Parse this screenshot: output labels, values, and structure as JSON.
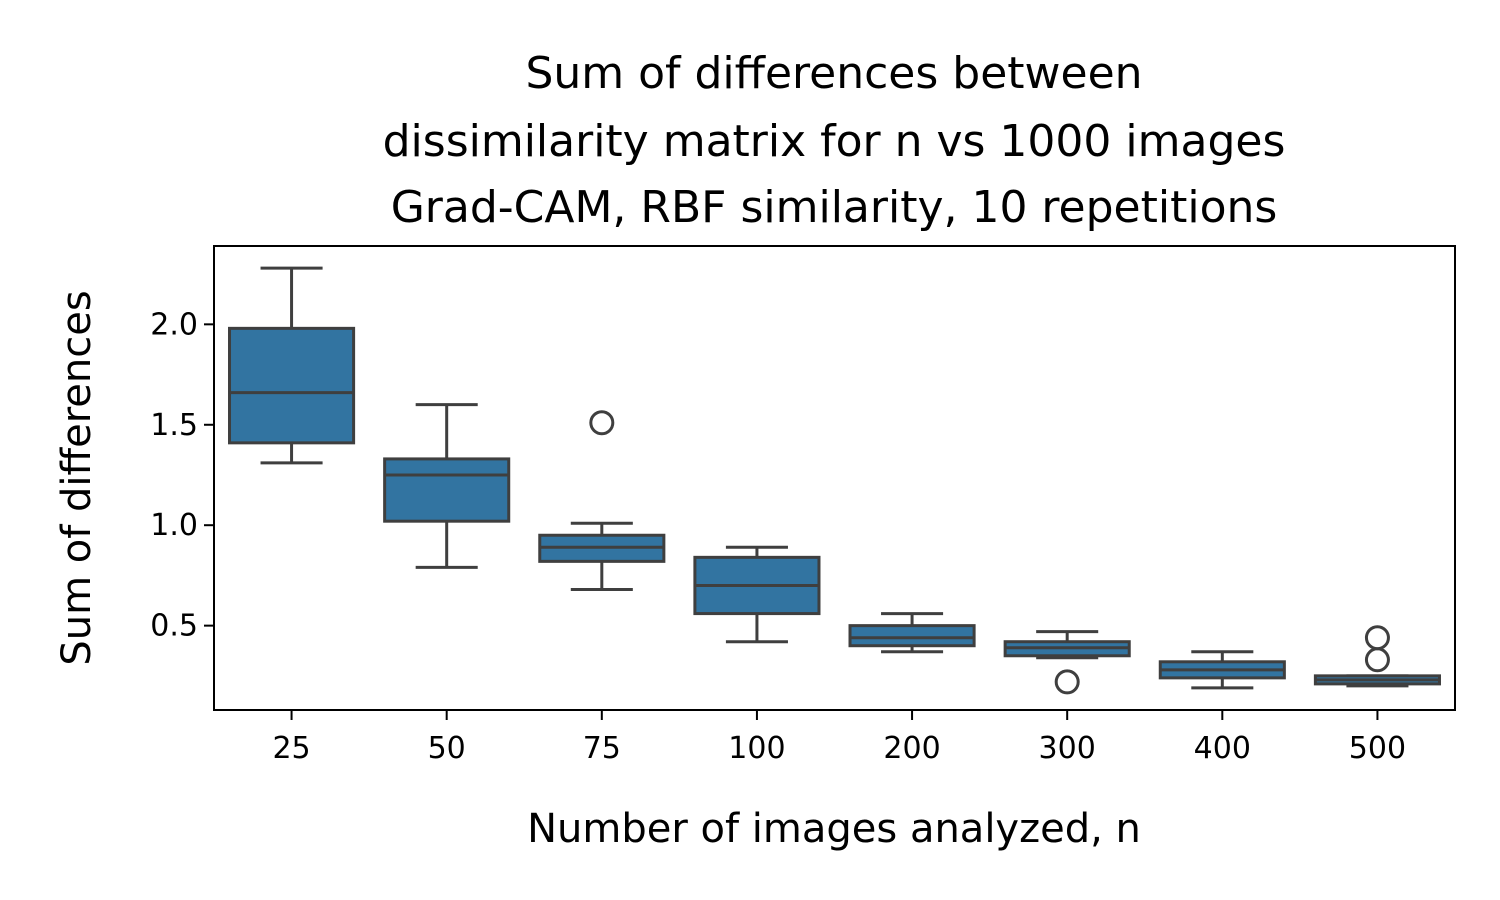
{
  "chart_data": {
    "type": "box",
    "title_lines": [
      "Sum of differences between",
      "dissimilarity matrix for n vs 1000 images",
      "Grad-CAM, RBF similarity, 10 repetitions"
    ],
    "xlabel": "Number of images analyzed, n",
    "ylabel": "Sum of differences",
    "ylim": [
      0.08,
      2.39
    ],
    "yticks": [
      0.5,
      1.0,
      1.5,
      2.0
    ],
    "ytick_labels": [
      "0.5",
      "1.0",
      "1.5",
      "2.0"
    ],
    "grid": false,
    "box_color": "#3274a1",
    "line_color": "#3f3f3f",
    "categories": [
      "25",
      "50",
      "75",
      "100",
      "200",
      "300",
      "400",
      "500"
    ],
    "boxes": [
      {
        "whisker_low": 1.31,
        "q1": 1.41,
        "median": 1.66,
        "q3": 1.98,
        "whisker_high": 2.28,
        "outliers": []
      },
      {
        "whisker_low": 0.79,
        "q1": 1.02,
        "median": 1.25,
        "q3": 1.33,
        "whisker_high": 1.6,
        "outliers": []
      },
      {
        "whisker_low": 0.68,
        "q1": 0.82,
        "median": 0.89,
        "q3": 0.95,
        "whisker_high": 1.01,
        "outliers": [
          1.51
        ]
      },
      {
        "whisker_low": 0.42,
        "q1": 0.56,
        "median": 0.7,
        "q3": 0.84,
        "whisker_high": 0.89,
        "outliers": []
      },
      {
        "whisker_low": 0.37,
        "q1": 0.4,
        "median": 0.44,
        "q3": 0.5,
        "whisker_high": 0.56,
        "outliers": []
      },
      {
        "whisker_low": 0.34,
        "q1": 0.35,
        "median": 0.39,
        "q3": 0.42,
        "whisker_high": 0.47,
        "outliers": [
          0.22
        ]
      },
      {
        "whisker_low": 0.19,
        "q1": 0.24,
        "median": 0.28,
        "q3": 0.32,
        "whisker_high": 0.37,
        "outliers": []
      },
      {
        "whisker_low": 0.2,
        "q1": 0.21,
        "median": 0.23,
        "q3": 0.25,
        "whisker_high": 0.25,
        "outliers": [
          0.33,
          0.44
        ]
      }
    ]
  }
}
